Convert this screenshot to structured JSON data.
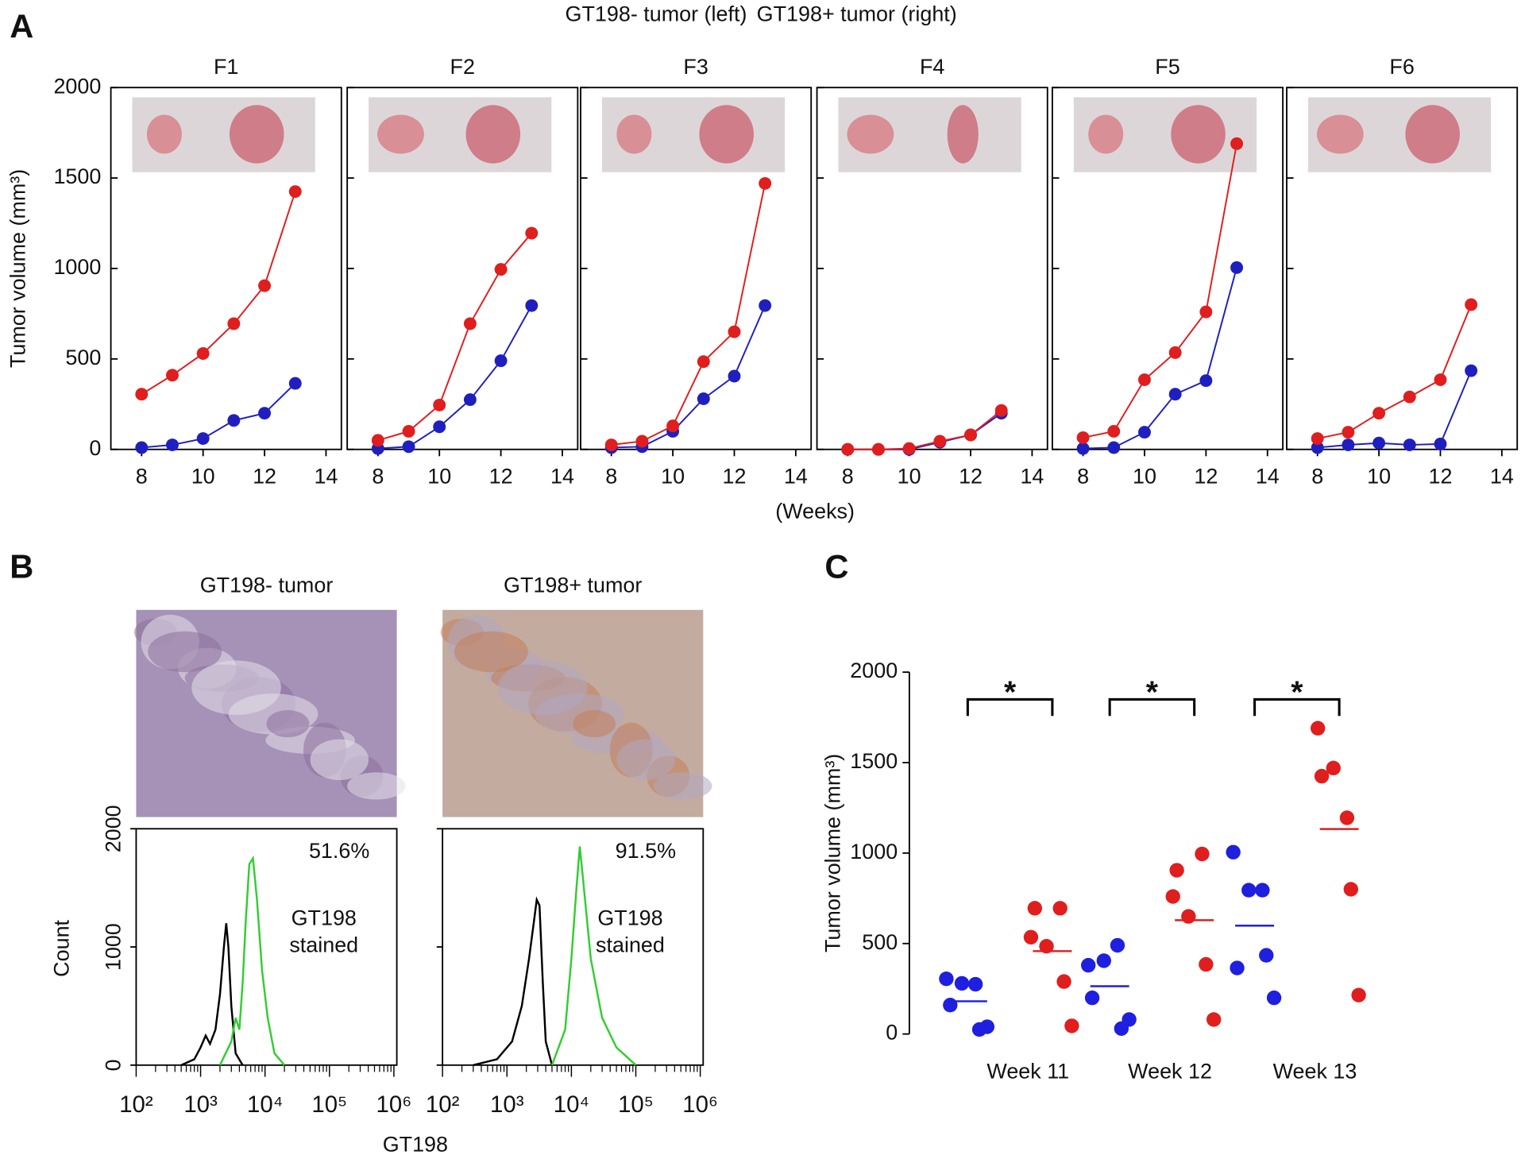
{
  "figure": {
    "panel_labels": [
      "A",
      "B",
      "C"
    ]
  },
  "chart_data": [
    {
      "type": "line",
      "series": [
        {
          "name": "GT198- tumor (left)",
          "color": "#1f1fbf"
        },
        {
          "name": "GT198+ tumor (right)",
          "color": "#e01e1e"
        }
      ],
      "ylabel": "Tumor volume (mm³)",
      "xlabel": "(Weeks)",
      "x": [
        8,
        9,
        10,
        11,
        12,
        13
      ],
      "xlim": [
        7,
        14.5
      ],
      "xticks": [
        8,
        10,
        12,
        14
      ],
      "ylim": [
        0,
        2000
      ],
      "yticks": [
        0,
        500,
        1000,
        1500,
        2000
      ],
      "facets": [
        {
          "title": "F1",
          "values": [
            [
              10,
              25,
              60,
              160,
              200,
              365
            ],
            [
              305,
              410,
              530,
              695,
              905,
              1425
            ]
          ]
        },
        {
          "title": "F2",
          "values": [
            [
              5,
              15,
              125,
              275,
              490,
              795
            ],
            [
              50,
              100,
              245,
              695,
              995,
              1195
            ]
          ]
        },
        {
          "title": "F3",
          "values": [
            [
              10,
              15,
              100,
              280,
              405,
              795
            ],
            [
              25,
              45,
              130,
              485,
              650,
              1470
            ]
          ]
        },
        {
          "title": "F4",
          "values": [
            [
              0,
              0,
              0,
              40,
              80,
              200
            ],
            [
              0,
              0,
              5,
              45,
              80,
              215
            ]
          ]
        },
        {
          "title": "F5",
          "values": [
            [
              5,
              10,
              95,
              305,
              380,
              1005
            ],
            [
              65,
              100,
              385,
              535,
              760,
              1690
            ]
          ]
        },
        {
          "title": "F6",
          "values": [
            [
              10,
              25,
              35,
              25,
              30,
              435
            ],
            [
              60,
              95,
              200,
              290,
              385,
              800
            ]
          ]
        }
      ]
    },
    {
      "type": "line",
      "log_x": true,
      "ylabel": "Count",
      "xlabel": "GT198",
      "xlim": [
        100,
        1000000
      ],
      "xticks": [
        {
          "value": 100,
          "label": "10²"
        },
        {
          "value": 1000,
          "label": "10³"
        },
        {
          "value": 10000,
          "label": "10⁴"
        },
        {
          "value": 100000,
          "label": "10⁵"
        },
        {
          "value": 1000000,
          "label": "10⁶"
        }
      ],
      "ylim": [
        0,
        2000
      ],
      "yticks": [
        0,
        1000,
        2000
      ],
      "facets": [
        {
          "title": "GT198- tumor",
          "title_color": "#2b2b9c",
          "annotation": "51.6%",
          "series": [
            {
              "color": "#000000",
              "x": [
                500,
                800,
                1000,
                1200,
                1400,
                1700,
                2000,
                2300,
                2500,
                2700,
                3000,
                3500,
                4500
              ],
              "values": [
                0,
                50,
                150,
                250,
                180,
                300,
                600,
                1000,
                1200,
                1000,
                500,
                100,
                0
              ]
            },
            {
              "label_lines": [
                "GT198",
                "stained"
              ],
              "color": "#33cc33",
              "x": [
                2000,
                3000,
                3500,
                4000,
                4500,
                5000,
                5700,
                6500,
                7500,
                9000,
                11000,
                14000,
                20000
              ],
              "values": [
                0,
                200,
                400,
                300,
                700,
                1200,
                1700,
                1750,
                1400,
                800,
                400,
                100,
                0
              ]
            }
          ]
        },
        {
          "title": "GT198+ tumor",
          "title_color": "#c0282a",
          "annotation": "91.5%",
          "series": [
            {
              "color": "#000000",
              "x": [
                300,
                700,
                1200,
                1700,
                2200,
                2600,
                2900,
                3200,
                3600,
                4000,
                5000
              ],
              "values": [
                0,
                50,
                200,
                500,
                900,
                1200,
                1400,
                1350,
                700,
                200,
                0
              ]
            },
            {
              "label_lines": [
                "GT198",
                "stained"
              ],
              "color": "#33cc33",
              "x": [
                5000,
                8000,
                10000,
                12000,
                13500,
                15000,
                20000,
                30000,
                50000,
                100000
              ],
              "values": [
                0,
                300,
                900,
                1500,
                1850,
                1600,
                900,
                400,
                150,
                0
              ]
            }
          ]
        }
      ]
    },
    {
      "type": "strip",
      "categories": [
        "Week 11",
        "Week 12",
        "Week 13"
      ],
      "ylabel": "Tumor volume (mm³)",
      "ylim": [
        0,
        2000
      ],
      "yticks": [
        0,
        500,
        1000,
        1500,
        2000
      ],
      "series": [
        {
          "color": "#1f1fe0",
          "values": [
            [
              160,
              275,
              280,
              40,
              305,
              25
            ],
            [
              200,
              490,
              405,
              80,
              380,
              30
            ],
            [
              365,
              795,
              795,
              200,
              1005,
              435
            ]
          ],
          "means": [
            181,
            264,
            599
          ]
        },
        {
          "color": "#e01e1e",
          "values": [
            [
              695,
              695,
              485,
              45,
              535,
              290
            ],
            [
              905,
              995,
              650,
              80,
              760,
              385
            ],
            [
              1425,
              1195,
              1470,
              215,
              1690,
              800
            ]
          ],
          "means": [
            458,
            629,
            1133
          ]
        }
      ],
      "annotations": [
        "*",
        "*",
        "*"
      ]
    }
  ]
}
